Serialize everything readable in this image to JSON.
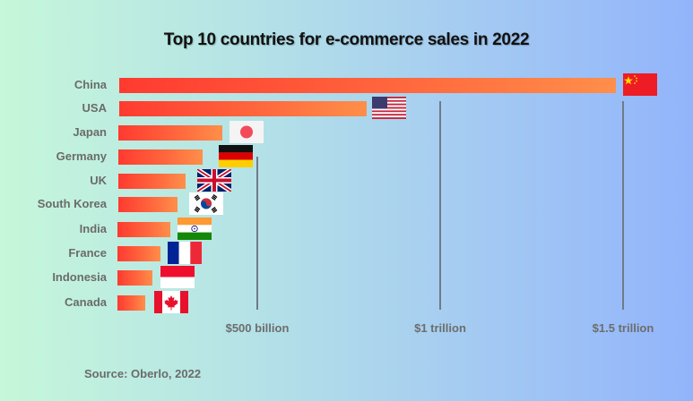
{
  "chart_data": {
    "type": "bar",
    "orientation": "horizontal",
    "title": "Top 10 countries for e-commerce sales in 2022",
    "categories": [
      "China",
      "USA",
      "Japan",
      "Germany",
      "UK",
      "South Korea",
      "India",
      "France",
      "Indonesia",
      "Canada"
    ],
    "values": [
      1480,
      800,
      404,
      350,
      304,
      282,
      262,
      235,
      213,
      194
    ],
    "unit": "billion USD (estimated from axis)",
    "xlabel": "",
    "ylabel": "",
    "xticks": [
      "$500 billion",
      "$1 trillion",
      "$1.5 trillion"
    ],
    "xtick_values": [
      500,
      1000,
      1500
    ],
    "grid": "vertical lines at tick values",
    "legend": "none; country flags at bar ends",
    "source": "Source: Oberlo, 2022"
  },
  "colors": {
    "bar_start": "#ff3a30",
    "bar_end": "#ff8f4a",
    "background_left": "#c6f7da",
    "background_right": "#92b4fb",
    "label": "#6b6b6b"
  },
  "rows": [
    {
      "label": "China",
      "flag": "china-flag"
    },
    {
      "label": "USA",
      "flag": "usa-flag"
    },
    {
      "label": "Japan",
      "flag": "japan-flag"
    },
    {
      "label": "Germany",
      "flag": "germany-flag"
    },
    {
      "label": "UK",
      "flag": "uk-flag"
    },
    {
      "label": "South Korea",
      "flag": "south-korea-flag"
    },
    {
      "label": "India",
      "flag": "india-flag"
    },
    {
      "label": "France",
      "flag": "france-flag"
    },
    {
      "label": "Indonesia",
      "flag": "indonesia-flag"
    },
    {
      "label": "Canada",
      "flag": "canada-flag"
    }
  ]
}
